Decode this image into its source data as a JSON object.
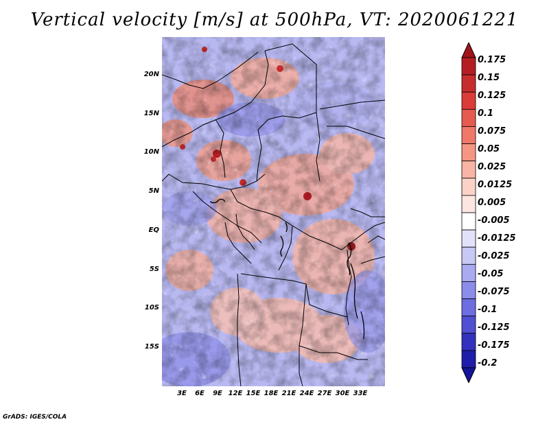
{
  "title": "Vertical velocity [m/s] at 500hPa, VT: 2020061221",
  "credit": "GrADS: IGES/COLA",
  "map": {
    "lat_range": [
      -19.5,
      25
    ],
    "lon_range": [
      -1,
      36.5
    ],
    "lat_ticks": [
      {
        "value": 20,
        "label": "20N"
      },
      {
        "value": 15,
        "label": "15N"
      },
      {
        "value": 10,
        "label": "10N"
      },
      {
        "value": 5,
        "label": "5N"
      },
      {
        "value": 0,
        "label": "EQ"
      },
      {
        "value": -5,
        "label": "5S"
      },
      {
        "value": -10,
        "label": "10S"
      },
      {
        "value": -15,
        "label": "15S"
      }
    ],
    "lon_ticks": [
      {
        "value": 3,
        "label": "3E"
      },
      {
        "value": 6,
        "label": "6E"
      },
      {
        "value": 9,
        "label": "9E"
      },
      {
        "value": 12,
        "label": "12E"
      },
      {
        "value": 15,
        "label": "15E"
      },
      {
        "value": 18,
        "label": "18E"
      },
      {
        "value": 21,
        "label": "21E"
      },
      {
        "value": 24,
        "label": "24E"
      },
      {
        "value": 27,
        "label": "27E"
      },
      {
        "value": 30,
        "label": "30E"
      },
      {
        "value": 33,
        "label": "33E"
      }
    ]
  },
  "colorbar": {
    "levels": [
      {
        "label": "0.175",
        "color": "#b41e23"
      },
      {
        "label": "0.15",
        "color": "#c82d2d"
      },
      {
        "label": "0.125",
        "color": "#dc3c37"
      },
      {
        "label": "0.1",
        "color": "#e65a50"
      },
      {
        "label": "0.075",
        "color": "#f07869"
      },
      {
        "label": "0.05",
        "color": "#f59682"
      },
      {
        "label": "0.025",
        "color": "#f8b4a5"
      },
      {
        "label": "0.0125",
        "color": "#fbd2c8"
      },
      {
        "label": "0.005",
        "color": "#fde6e1"
      },
      {
        "label": "-0.005",
        "color": "#ffffff"
      },
      {
        "label": "-0.0125",
        "color": "#e1e1fa"
      },
      {
        "label": "-0.025",
        "color": "#c8c8f5"
      },
      {
        "label": "-0.05",
        "color": "#aaaaf0"
      },
      {
        "label": "-0.075",
        "color": "#8c8ceb"
      },
      {
        "label": "-0.1",
        "color": "#6e6ee1"
      },
      {
        "label": "-0.125",
        "color": "#5050d2"
      },
      {
        "label": "-0.175",
        "color": "#3232be"
      },
      {
        "label": "-0.2",
        "color": "#1e1eaa"
      }
    ],
    "top_color": "#a01419",
    "bottom_color": "#14149b"
  }
}
